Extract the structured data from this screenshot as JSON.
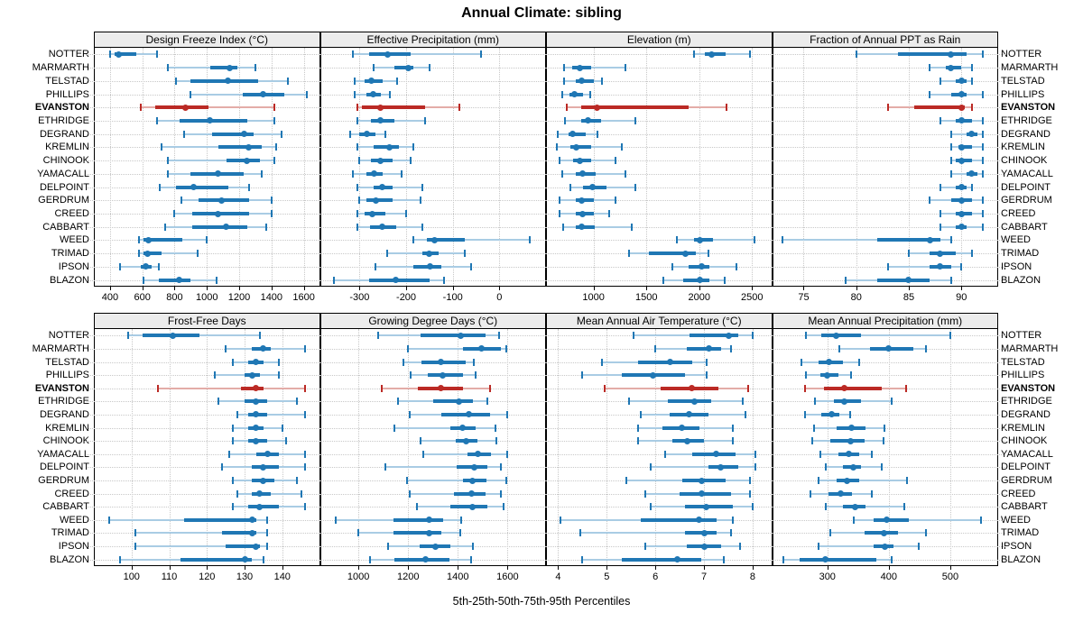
{
  "title": "Annual Climate: sibling",
  "caption": "5th-25th-50th-75th-95th Percentiles",
  "stations": [
    "NOTTER",
    "MARMARTH",
    "TELSTAD",
    "PHILLIPS",
    "EVANSTON",
    "ETHRIDGE",
    "DEGRAND",
    "KREMLIN",
    "CHINOOK",
    "YAMACALL",
    "DELPOINT",
    "GERDRUM",
    "CREED",
    "CABBART",
    "WEED",
    "TRIMAD",
    "IPSON",
    "BLAZON"
  ],
  "highlight_station": "EVANSTON",
  "colors": {
    "series": "#1f77b4",
    "series_faint": "#a9cce4",
    "highlight": "#bb2a25",
    "highlight_faint": "#e3aca8",
    "grid": "#c8c8c8",
    "strip_bg": "#ececec",
    "panel_border": "#000000"
  },
  "chart_data": {
    "type": "scatter",
    "subtype": "percentile-interval-dotplot",
    "percentiles": [
      5,
      25,
      50,
      75,
      95
    ],
    "legend_note": "thin line = 5th-95th, thick line = 25th-75th, dot = median",
    "grid": "dotted",
    "panels": [
      {
        "title": "Design Freeze Index (°C)",
        "xlim": [
          300,
          1700
        ],
        "ticks": [
          400,
          600,
          800,
          1000,
          1200,
          1400,
          1600
        ],
        "tick_labels": [
          "400",
          "600",
          "800",
          "1000",
          "1200",
          "1400",
          "1600"
        ],
        "series": [
          [
            400,
            430,
            455,
            560,
            690
          ],
          [
            760,
            1020,
            1140,
            1190,
            1300
          ],
          [
            810,
            900,
            1130,
            1320,
            1500
          ],
          [
            900,
            1220,
            1350,
            1480,
            1620
          ],
          [
            590,
            680,
            870,
            1010,
            1420
          ],
          [
            690,
            830,
            1020,
            1250,
            1420
          ],
          [
            860,
            1030,
            1230,
            1290,
            1460
          ],
          [
            720,
            1070,
            1260,
            1340,
            1430
          ],
          [
            760,
            1120,
            1250,
            1330,
            1420
          ],
          [
            760,
            900,
            1070,
            1230,
            1340
          ],
          [
            710,
            810,
            920,
            1130,
            1260
          ],
          [
            840,
            950,
            1090,
            1260,
            1400
          ],
          [
            800,
            910,
            1070,
            1260,
            1400
          ],
          [
            740,
            910,
            1120,
            1250,
            1370
          ],
          [
            580,
            610,
            640,
            850,
            1000
          ],
          [
            580,
            610,
            635,
            720,
            940
          ],
          [
            460,
            590,
            620,
            660,
            700
          ],
          [
            610,
            700,
            830,
            900,
            1060
          ]
        ]
      },
      {
        "title": "Effective Precipitation (mm)",
        "xlim": [
          -385,
          100
        ],
        "ticks": [
          -300,
          -200,
          -100,
          0
        ],
        "tick_labels": [
          "-300",
          "-200",
          "-100",
          "0"
        ],
        "series": [
          [
            -315,
            -280,
            -240,
            -190,
            -40
          ],
          [
            -270,
            -225,
            -195,
            -185,
            -150
          ],
          [
            -310,
            -290,
            -275,
            -250,
            -220
          ],
          [
            -310,
            -285,
            -270,
            -255,
            -235
          ],
          [
            -305,
            -295,
            -255,
            -160,
            -85
          ],
          [
            -305,
            -275,
            -255,
            -225,
            -160
          ],
          [
            -320,
            -300,
            -285,
            -265,
            -245
          ],
          [
            -305,
            -270,
            -235,
            -215,
            -185
          ],
          [
            -300,
            -275,
            -255,
            -230,
            -190
          ],
          [
            -315,
            -285,
            -268,
            -250,
            -210
          ],
          [
            -305,
            -270,
            -252,
            -230,
            -165
          ],
          [
            -300,
            -285,
            -265,
            -230,
            -170
          ],
          [
            -305,
            -290,
            -273,
            -245,
            -200
          ],
          [
            -305,
            -278,
            -252,
            -222,
            -165
          ],
          [
            -185,
            -155,
            -140,
            -75,
            65
          ],
          [
            -240,
            -165,
            -150,
            -130,
            -75
          ],
          [
            -265,
            -185,
            -148,
            -125,
            -60
          ],
          [
            -355,
            -280,
            -222,
            -150,
            -118
          ]
        ]
      },
      {
        "title": "Elevation (m)",
        "xlim": [
          550,
          2690
        ],
        "ticks": [
          1000,
          1500,
          2000,
          2500
        ],
        "tick_labels": [
          "1000",
          "1500",
          "2000",
          "2500"
        ],
        "series": [
          [
            1950,
            2050,
            2120,
            2250,
            2480
          ],
          [
            720,
            800,
            870,
            980,
            1300
          ],
          [
            720,
            830,
            890,
            1000,
            1080
          ],
          [
            700,
            770,
            820,
            900,
            970
          ],
          [
            750,
            880,
            1030,
            1900,
            2260
          ],
          [
            730,
            880,
            950,
            1070,
            1400
          ],
          [
            660,
            760,
            800,
            930,
            1040
          ],
          [
            650,
            780,
            840,
            980,
            1270
          ],
          [
            680,
            810,
            870,
            980,
            1210
          ],
          [
            700,
            830,
            900,
            1020,
            1300
          ],
          [
            780,
            900,
            990,
            1120,
            1400
          ],
          [
            680,
            830,
            890,
            1000,
            1210
          ],
          [
            680,
            830,
            900,
            1000,
            1150
          ],
          [
            710,
            830,
            890,
            1010,
            1360
          ],
          [
            1790,
            1950,
            2010,
            2130,
            2520
          ],
          [
            1340,
            1520,
            1870,
            1970,
            2090
          ],
          [
            1750,
            1900,
            2020,
            2100,
            2350
          ],
          [
            1660,
            1850,
            2010,
            2100,
            2240
          ]
        ]
      },
      {
        "title": "Fraction of Annual PPT as Rain",
        "xlim": [
          72,
          93.5
        ],
        "ticks": [
          75,
          80,
          85,
          90
        ],
        "tick_labels": [
          "75",
          "80",
          "85",
          "90"
        ],
        "series": [
          [
            80,
            84,
            89,
            90.5,
            92
          ],
          [
            87,
            88.5,
            89,
            90,
            91
          ],
          [
            88,
            89.5,
            90,
            90.5,
            91
          ],
          [
            87,
            89,
            90,
            90.5,
            92
          ],
          [
            83,
            85.5,
            90,
            90.3,
            91
          ],
          [
            88,
            89.5,
            90,
            91,
            92
          ],
          [
            89,
            90.5,
            91,
            91.5,
            92
          ],
          [
            89,
            89.7,
            90,
            91,
            92
          ],
          [
            89,
            89.5,
            90,
            91,
            92
          ],
          [
            89,
            90.5,
            91,
            91.5,
            92
          ],
          [
            88,
            89.5,
            90,
            90.5,
            91
          ],
          [
            87,
            89,
            90,
            91,
            92
          ],
          [
            88,
            89.5,
            90,
            91,
            92
          ],
          [
            88,
            89.5,
            90,
            90.5,
            92
          ],
          [
            73,
            82,
            87,
            88,
            89
          ],
          [
            85,
            87,
            88,
            89.5,
            91
          ],
          [
            83,
            87,
            88,
            89,
            90
          ],
          [
            79,
            82,
            85,
            87,
            89
          ]
        ]
      },
      {
        "title": "Frost-Free Days",
        "xlim": [
          90,
          150
        ],
        "ticks": [
          100,
          110,
          120,
          130,
          140
        ],
        "tick_labels": [
          "100",
          "110",
          "120",
          "130",
          "140"
        ],
        "series": [
          [
            99,
            103,
            111,
            118,
            134
          ],
          [
            125,
            132,
            135,
            137,
            146
          ],
          [
            127,
            131,
            133,
            135,
            139
          ],
          [
            122,
            130,
            132,
            134,
            139
          ],
          [
            107,
            129,
            133,
            135,
            146
          ],
          [
            123,
            130,
            133,
            136,
            144
          ],
          [
            128,
            131,
            133,
            136,
            146
          ],
          [
            127,
            131,
            133,
            135,
            140
          ],
          [
            127,
            131,
            133,
            136,
            141
          ],
          [
            126,
            133,
            136,
            139,
            146
          ],
          [
            124,
            132,
            135,
            139,
            146
          ],
          [
            127,
            132,
            135,
            138,
            144
          ],
          [
            128,
            132,
            134,
            137,
            145
          ],
          [
            127,
            131,
            134,
            139,
            146
          ],
          [
            94,
            114,
            132,
            133,
            136
          ],
          [
            101,
            124,
            132,
            133,
            136
          ],
          [
            101,
            125,
            133,
            134,
            136
          ],
          [
            97,
            113,
            130,
            132,
            135
          ]
        ]
      },
      {
        "title": "Growing Degree Days (°C)",
        "xlim": [
          845,
          1755
        ],
        "ticks": [
          1000,
          1200,
          1400,
          1600
        ],
        "tick_labels": [
          "1000",
          "1200",
          "1400",
          "1600"
        ],
        "series": [
          [
            1080,
            1250,
            1410,
            1510,
            1565
          ],
          [
            1200,
            1420,
            1495,
            1575,
            1595
          ],
          [
            1180,
            1255,
            1330,
            1430,
            1465
          ],
          [
            1210,
            1280,
            1340,
            1420,
            1470
          ],
          [
            1095,
            1240,
            1330,
            1420,
            1530
          ],
          [
            1160,
            1300,
            1405,
            1460,
            1520
          ],
          [
            1205,
            1335,
            1445,
            1530,
            1600
          ],
          [
            1145,
            1370,
            1420,
            1470,
            1550
          ],
          [
            1250,
            1390,
            1435,
            1480,
            1555
          ],
          [
            1260,
            1440,
            1480,
            1535,
            1600
          ],
          [
            1110,
            1395,
            1465,
            1520,
            1575
          ],
          [
            1195,
            1420,
            1460,
            1515,
            1595
          ],
          [
            1205,
            1385,
            1455,
            1510,
            1575
          ],
          [
            1235,
            1370,
            1460,
            1520,
            1585
          ],
          [
            910,
            1140,
            1285,
            1340,
            1415
          ],
          [
            1000,
            1140,
            1285,
            1335,
            1410
          ],
          [
            1120,
            1245,
            1310,
            1370,
            1460
          ],
          [
            1045,
            1145,
            1270,
            1365,
            1455
          ]
        ]
      },
      {
        "title": "Mean Annual Air Temperature (°C)",
        "xlim": [
          3.75,
          8.4
        ],
        "ticks": [
          4,
          5,
          6,
          7,
          8
        ],
        "tick_labels": [
          "4",
          "5",
          "6",
          "7",
          "8"
        ],
        "series": [
          [
            5.55,
            6.7,
            7.5,
            7.7,
            8.0
          ],
          [
            6.0,
            6.65,
            7.1,
            7.35,
            7.55
          ],
          [
            4.9,
            5.65,
            6.3,
            6.75,
            7.05
          ],
          [
            4.5,
            5.3,
            5.95,
            6.6,
            7.05
          ],
          [
            4.95,
            6.1,
            6.75,
            7.3,
            7.9
          ],
          [
            5.45,
            6.25,
            6.8,
            7.15,
            7.8
          ],
          [
            5.7,
            6.3,
            6.7,
            7.1,
            7.85
          ],
          [
            5.65,
            6.15,
            6.55,
            6.9,
            7.6
          ],
          [
            5.65,
            6.35,
            6.65,
            7.0,
            7.6
          ],
          [
            6.2,
            6.75,
            7.25,
            7.65,
            8.05
          ],
          [
            5.9,
            7.1,
            7.35,
            7.7,
            8.05
          ],
          [
            5.4,
            6.55,
            6.95,
            7.45,
            7.95
          ],
          [
            5.8,
            6.5,
            6.95,
            7.55,
            7.95
          ],
          [
            5.9,
            6.6,
            7.05,
            7.6,
            8.0
          ],
          [
            4.05,
            5.7,
            6.9,
            7.25,
            7.6
          ],
          [
            4.45,
            6.6,
            7.0,
            7.25,
            7.55
          ],
          [
            5.8,
            6.65,
            7.0,
            7.35,
            7.75
          ],
          [
            4.5,
            5.3,
            6.45,
            6.95,
            7.4
          ]
        ]
      },
      {
        "title": "Mean Annual Precipitation (mm)",
        "xlim": [
          210,
          578
        ],
        "ticks": [
          300,
          400,
          500
        ],
        "tick_labels": [
          "300",
          "400",
          "500"
        ],
        "series": [
          [
            265,
            290,
            315,
            355,
            500
          ],
          [
            320,
            370,
            400,
            440,
            460
          ],
          [
            258,
            285,
            303,
            325,
            352
          ],
          [
            265,
            288,
            300,
            318,
            338
          ],
          [
            263,
            295,
            328,
            388,
            428
          ],
          [
            280,
            310,
            328,
            355,
            405
          ],
          [
            263,
            290,
            307,
            320,
            337
          ],
          [
            278,
            315,
            340,
            362,
            393
          ],
          [
            276,
            305,
            338,
            360,
            392
          ],
          [
            288,
            318,
            335,
            352,
            372
          ],
          [
            298,
            325,
            342,
            355,
            388
          ],
          [
            285,
            315,
            332,
            352,
            430
          ],
          [
            272,
            302,
            322,
            340,
            373
          ],
          [
            298,
            325,
            345,
            362,
            425
          ],
          [
            343,
            375,
            397,
            432,
            550
          ],
          [
            305,
            360,
            392,
            415,
            460
          ],
          [
            285,
            375,
            393,
            408,
            448
          ],
          [
            228,
            255,
            297,
            380,
            405
          ]
        ]
      }
    ]
  }
}
